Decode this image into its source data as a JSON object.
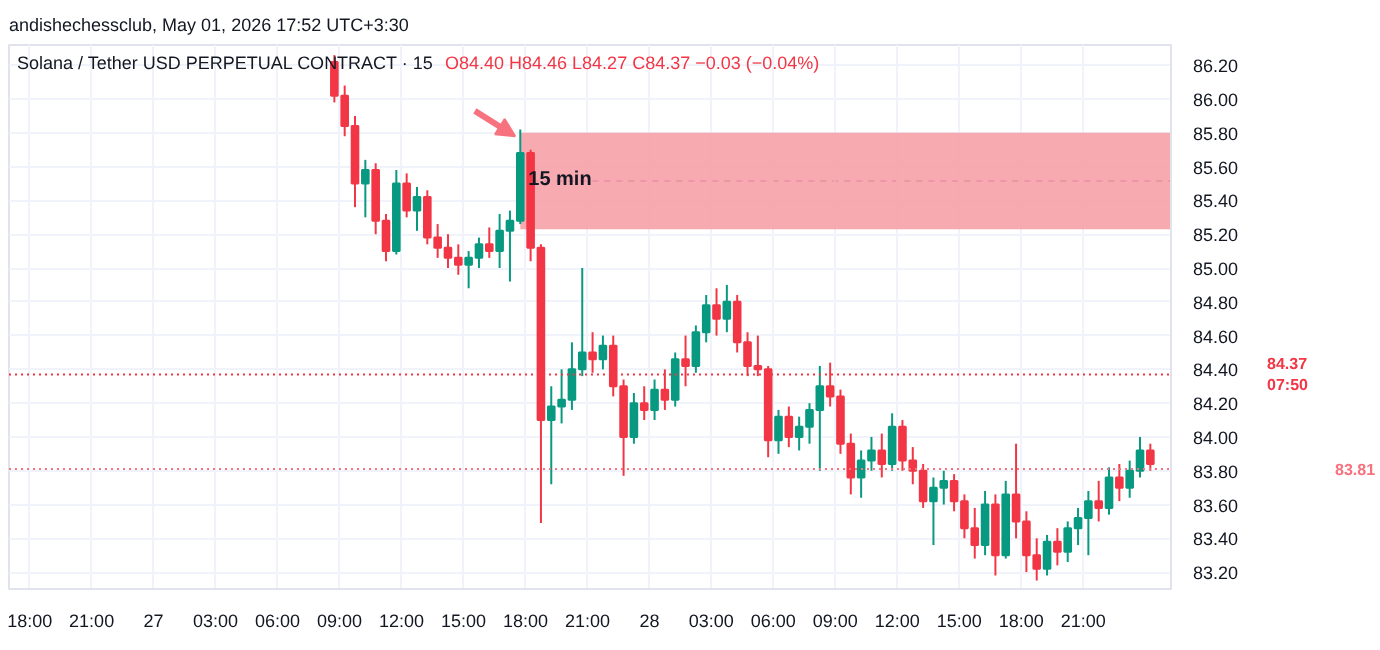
{
  "chart_data": {
    "type": "candlestick",
    "title": "Solana / Tether USD PERPETUAL CONTRACT · 15",
    "subtitle": "O84.40 H84.46 L84.27 C84.37 −0.03 (−0.04%)",
    "annotations": [
      "andishechessclub, May 01, 2026 17:52 UTC+3:30",
      {
        "text": "15 min",
        "x": "2026-04-27T17:45",
        "y": 85.52
      }
    ],
    "x": [
      "2026-04-27T08:45",
      "2026-04-27T09:15",
      "2026-04-27T09:45",
      "2026-04-27T10:15",
      "2026-04-27T10:45",
      "2026-04-27T11:15",
      "2026-04-27T11:45",
      "2026-04-27T12:15",
      "2026-04-27T12:45",
      "2026-04-27T13:15",
      "2026-04-27T13:45",
      "2026-04-27T14:15",
      "2026-04-27T14:45",
      "2026-04-27T15:15",
      "2026-04-27T15:45",
      "2026-04-27T16:15",
      "2026-04-27T16:45",
      "2026-04-27T17:15",
      "2026-04-27T17:45",
      "2026-04-27T18:15",
      "2026-04-27T18:45",
      "2026-04-27T19:15",
      "2026-04-27T19:45",
      "2026-04-27T20:15",
      "2026-04-27T20:45",
      "2026-04-27T21:15",
      "2026-04-27T21:45",
      "2026-04-27T22:15",
      "2026-04-27T22:45",
      "2026-04-27T23:15",
      "2026-04-27T23:45",
      "2026-04-28T00:15",
      "2026-04-28T00:45",
      "2026-04-28T01:15",
      "2026-04-28T01:45",
      "2026-04-28T02:15",
      "2026-04-28T02:45",
      "2026-04-28T03:15",
      "2026-04-28T03:45",
      "2026-04-28T04:15",
      "2026-04-28T04:45",
      "2026-04-28T05:15",
      "2026-04-28T05:45",
      "2026-04-28T06:15",
      "2026-04-28T06:45",
      "2026-04-28T07:15",
      "2026-04-28T07:45",
      "2026-04-28T08:15",
      "2026-04-28T08:45",
      "2026-04-28T09:15",
      "2026-04-28T09:45",
      "2026-04-28T10:15",
      "2026-04-28T10:45",
      "2026-04-28T11:15",
      "2026-04-28T11:45",
      "2026-04-28T12:15",
      "2026-04-28T12:45",
      "2026-04-28T13:15",
      "2026-04-28T13:45",
      "2026-04-28T14:15",
      "2026-04-28T14:45",
      "2026-04-28T15:15",
      "2026-04-28T15:45",
      "2026-04-28T16:15",
      "2026-04-28T16:45",
      "2026-04-28T17:15",
      "2026-04-28T17:45",
      "2026-04-28T18:15",
      "2026-04-28T18:45",
      "2026-04-28T19:15",
      "2026-04-28T19:45",
      "2026-04-28T20:15",
      "2026-04-28T20:45",
      "2026-04-28T21:15",
      "2026-04-28T21:45",
      "2026-04-28T22:15",
      "2026-04-28T22:45",
      "2026-04-28T23:15",
      "2026-04-28T23:45",
      "2026-04-29T00:15"
    ],
    "ohlc": [
      [
        86.22,
        86.26,
        85.98,
        86.02
      ],
      [
        86.02,
        86.08,
        85.78,
        85.84
      ],
      [
        85.84,
        85.9,
        85.36,
        85.5
      ],
      [
        85.5,
        85.64,
        85.3,
        85.58
      ],
      [
        85.58,
        85.62,
        85.2,
        85.28
      ],
      [
        85.28,
        85.32,
        85.04,
        85.1
      ],
      [
        85.1,
        85.58,
        85.08,
        85.5
      ],
      [
        85.5,
        85.56,
        85.3,
        85.34
      ],
      [
        85.34,
        85.48,
        85.22,
        85.42
      ],
      [
        85.42,
        85.46,
        85.14,
        85.18
      ],
      [
        85.18,
        85.26,
        85.06,
        85.12
      ],
      [
        85.12,
        85.2,
        85.0,
        85.06
      ],
      [
        85.06,
        85.14,
        84.96,
        85.02
      ],
      [
        85.02,
        85.1,
        84.88,
        85.06
      ],
      [
        85.06,
        85.18,
        85.0,
        85.14
      ],
      [
        85.14,
        85.24,
        85.06,
        85.1
      ],
      [
        85.1,
        85.32,
        85.0,
        85.22
      ],
      [
        85.22,
        85.34,
        84.92,
        85.28
      ],
      [
        85.28,
        85.82,
        85.26,
        85.68
      ],
      [
        85.68,
        85.7,
        85.04,
        85.12
      ],
      [
        85.12,
        85.14,
        83.49,
        84.1
      ],
      [
        84.1,
        84.3,
        83.72,
        84.18
      ],
      [
        84.18,
        84.4,
        84.08,
        84.22
      ],
      [
        84.22,
        84.56,
        84.16,
        84.4
      ],
      [
        84.4,
        85.0,
        84.36,
        84.5
      ],
      [
        84.5,
        84.62,
        84.38,
        84.46
      ],
      [
        84.46,
        84.6,
        84.4,
        84.54
      ],
      [
        84.54,
        84.6,
        84.24,
        84.3
      ],
      [
        84.3,
        84.34,
        83.77,
        84.0
      ],
      [
        84.0,
        84.26,
        83.96,
        84.2
      ],
      [
        84.2,
        84.3,
        84.1,
        84.16
      ],
      [
        84.16,
        84.34,
        84.1,
        84.28
      ],
      [
        84.28,
        84.4,
        84.16,
        84.22
      ],
      [
        84.22,
        84.5,
        84.18,
        84.46
      ],
      [
        84.46,
        84.6,
        84.3,
        84.42
      ],
      [
        84.42,
        84.66,
        84.38,
        84.62
      ],
      [
        84.62,
        84.84,
        84.56,
        84.78
      ],
      [
        84.78,
        84.88,
        84.6,
        84.7
      ],
      [
        84.7,
        84.9,
        84.62,
        84.8
      ],
      [
        84.8,
        84.84,
        84.5,
        84.56
      ],
      [
        84.56,
        84.62,
        84.36,
        84.42
      ],
      [
        84.42,
        84.6,
        84.36,
        84.4
      ],
      [
        84.4,
        84.42,
        83.88,
        83.98
      ],
      [
        83.98,
        84.16,
        83.9,
        84.12
      ],
      [
        84.12,
        84.18,
        83.94,
        84.0
      ],
      [
        84.0,
        84.12,
        83.92,
        84.06
      ],
      [
        84.06,
        84.2,
        83.96,
        84.16
      ],
      [
        84.16,
        84.42,
        83.8,
        84.3
      ],
      [
        84.3,
        84.44,
        84.18,
        84.24
      ],
      [
        84.24,
        84.28,
        83.9,
        83.96
      ],
      [
        83.96,
        84.02,
        83.66,
        83.76
      ],
      [
        83.76,
        83.92,
        83.64,
        83.86
      ],
      [
        83.86,
        84.0,
        83.8,
        83.92
      ],
      [
        83.92,
        84.02,
        83.76,
        83.84
      ],
      [
        83.84,
        84.14,
        83.8,
        84.06
      ],
      [
        84.06,
        84.1,
        83.8,
        83.86
      ],
      [
        83.86,
        83.94,
        83.72,
        83.8
      ],
      [
        83.8,
        83.84,
        83.58,
        83.62
      ],
      [
        83.62,
        83.76,
        83.36,
        83.7
      ],
      [
        83.7,
        83.8,
        83.6,
        83.74
      ],
      [
        83.74,
        83.78,
        83.56,
        83.62
      ],
      [
        83.62,
        83.66,
        83.4,
        83.46
      ],
      [
        83.46,
        83.58,
        83.28,
        83.36
      ],
      [
        83.36,
        83.68,
        83.3,
        83.6
      ],
      [
        83.6,
        83.66,
        83.18,
        83.3
      ],
      [
        83.3,
        83.74,
        83.28,
        83.66
      ],
      [
        83.66,
        83.96,
        83.4,
        83.5
      ],
      [
        83.5,
        83.56,
        83.2,
        83.3
      ],
      [
        83.3,
        83.4,
        83.15,
        83.22
      ],
      [
        83.22,
        83.42,
        83.18,
        83.38
      ],
      [
        83.38,
        83.46,
        83.24,
        83.32
      ],
      [
        83.32,
        83.5,
        83.26,
        83.46
      ],
      [
        83.46,
        83.58,
        83.36,
        83.52
      ],
      [
        83.52,
        83.68,
        83.3,
        83.62
      ],
      [
        83.62,
        83.74,
        83.5,
        83.58
      ],
      [
        83.58,
        83.82,
        83.54,
        83.76
      ],
      [
        83.76,
        83.84,
        83.62,
        83.7
      ],
      [
        83.7,
        83.86,
        83.64,
        83.8
      ],
      [
        83.8,
        84.0,
        83.76,
        83.92
      ],
      [
        83.92,
        83.96,
        83.8,
        83.84
      ]
    ],
    "xlim": [
      "2026-04-26T17:00",
      "2026-04-29T01:15"
    ],
    "xticks": [
      {
        "value": "2026-04-26T18:00",
        "label": "18:00"
      },
      {
        "value": "2026-04-26T21:00",
        "label": "21:00"
      },
      {
        "value": "2026-04-27",
        "label": "27"
      },
      {
        "value": "2026-04-27T03:00",
        "label": "03:00"
      },
      {
        "value": "2026-04-27T06:00",
        "label": "06:00"
      },
      {
        "value": "2026-04-27T09:00",
        "label": "09:00"
      },
      {
        "value": "2026-04-27T12:00",
        "label": "12:00"
      },
      {
        "value": "2026-04-27T15:00",
        "label": "15:00"
      },
      {
        "value": "2026-04-27T18:00",
        "label": "18:00"
      },
      {
        "value": "2026-04-27T21:00",
        "label": "21:00"
      },
      {
        "value": "2026-04-28",
        "label": "28"
      },
      {
        "value": "2026-04-28T03:00",
        "label": "03:00"
      },
      {
        "value": "2026-04-28T06:00",
        "label": "06:00"
      },
      {
        "value": "2026-04-28T09:00",
        "label": "09:00"
      },
      {
        "value": "2026-04-28T12:00",
        "label": "12:00"
      },
      {
        "value": "2026-04-28T15:00",
        "label": "15:00"
      },
      {
        "value": "2026-04-28T18:00",
        "label": "18:00"
      },
      {
        "value": "2026-04-28T21:00",
        "label": "21:00"
      }
    ],
    "ylim": [
      83.1,
      86.32
    ],
    "yticks": [
      {
        "value": 83.2,
        "label": "83.20"
      },
      {
        "value": 83.4,
        "label": "83.40"
      },
      {
        "value": 83.6,
        "label": "83.60"
      },
      {
        "value": 83.8,
        "label": "83.80"
      },
      {
        "value": 84.0,
        "label": "84.00"
      },
      {
        "value": 84.2,
        "label": "84.20"
      },
      {
        "value": 84.4,
        "label": "84.40"
      },
      {
        "value": 84.6,
        "label": "84.60"
      },
      {
        "value": 84.8,
        "label": "84.80"
      },
      {
        "value": 85.0,
        "label": "85.00"
      },
      {
        "value": 85.2,
        "label": "85.20"
      },
      {
        "value": 85.4,
        "label": "85.40"
      },
      {
        "value": 85.6,
        "label": "85.60"
      },
      {
        "value": 85.8,
        "label": "85.80"
      },
      {
        "value": 86.0,
        "label": "86.00"
      },
      {
        "value": 86.2,
        "label": "86.20"
      }
    ],
    "grid": true,
    "bands": [
      {
        "axis": "y",
        "from": 85.23,
        "to": 85.8,
        "color": "#f7a1a9"
      }
    ],
    "ref_lines": [
      {
        "axis": "y",
        "value": 84.37,
        "label": "84.37\n07:50",
        "color": "#f23645",
        "line_style": "dotted"
      },
      {
        "axis": "y",
        "value": 83.81,
        "label": "83.81",
        "color": "#f7727e",
        "line_style": "dotted"
      }
    ]
  }
}
